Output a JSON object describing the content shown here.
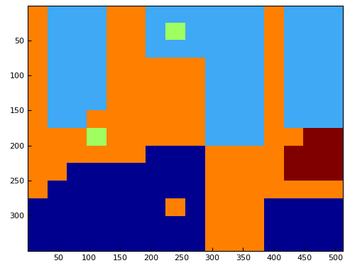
{
  "chart_data": {
    "type": "heatmap",
    "colors": [
      "#00008f",
      "#3fa9f5",
      "#ff8000",
      "#a0ff60",
      "#800000"
    ],
    "cells": [
      [
        2,
        1,
        1,
        1,
        2,
        2,
        1,
        1,
        1,
        1,
        1,
        1,
        2,
        1,
        1,
        1
      ],
      [
        2,
        1,
        1,
        1,
        2,
        2,
        1,
        3,
        1,
        1,
        1,
        1,
        2,
        1,
        1,
        1
      ],
      [
        2,
        1,
        1,
        1,
        2,
        2,
        1,
        1,
        1,
        1,
        1,
        1,
        2,
        1,
        1,
        1
      ],
      [
        2,
        1,
        1,
        1,
        2,
        2,
        2,
        2,
        2,
        1,
        1,
        1,
        2,
        1,
        1,
        1
      ],
      [
        2,
        1,
        1,
        1,
        2,
        2,
        2,
        2,
        2,
        1,
        1,
        1,
        2,
        1,
        1,
        1
      ],
      [
        2,
        1,
        1,
        1,
        2,
        2,
        2,
        2,
        2,
        1,
        1,
        1,
        2,
        1,
        1,
        1
      ],
      [
        2,
        1,
        1,
        2,
        2,
        2,
        2,
        2,
        2,
        1,
        1,
        1,
        2,
        1,
        1,
        1
      ],
      [
        2,
        2,
        2,
        3,
        2,
        2,
        2,
        2,
        2,
        1,
        1,
        1,
        2,
        2,
        4,
        4
      ],
      [
        2,
        2,
        2,
        2,
        2,
        2,
        0,
        0,
        0,
        2,
        2,
        2,
        2,
        4,
        4,
        4
      ],
      [
        2,
        2,
        0,
        0,
        0,
        0,
        0,
        0,
        0,
        2,
        2,
        2,
        2,
        4,
        4,
        4
      ],
      [
        2,
        0,
        0,
        0,
        0,
        0,
        0,
        0,
        0,
        2,
        2,
        2,
        2,
        2,
        2,
        2
      ],
      [
        0,
        0,
        0,
        0,
        0,
        0,
        0,
        2,
        0,
        2,
        2,
        2,
        0,
        0,
        0,
        0
      ],
      [
        0,
        0,
        0,
        0,
        0,
        0,
        0,
        0,
        0,
        2,
        2,
        2,
        0,
        0,
        0,
        0
      ],
      [
        0,
        0,
        0,
        0,
        0,
        0,
        0,
        0,
        0,
        2,
        2,
        2,
        0,
        0,
        0,
        0
      ]
    ],
    "xlim": [
      0.5,
      512.5
    ],
    "ylim": [
      350.5,
      0.5
    ],
    "xticks": [
      50,
      100,
      150,
      200,
      250,
      300,
      350,
      400,
      450,
      500
    ],
    "yticks": [
      50,
      100,
      150,
      200,
      250,
      300
    ]
  }
}
